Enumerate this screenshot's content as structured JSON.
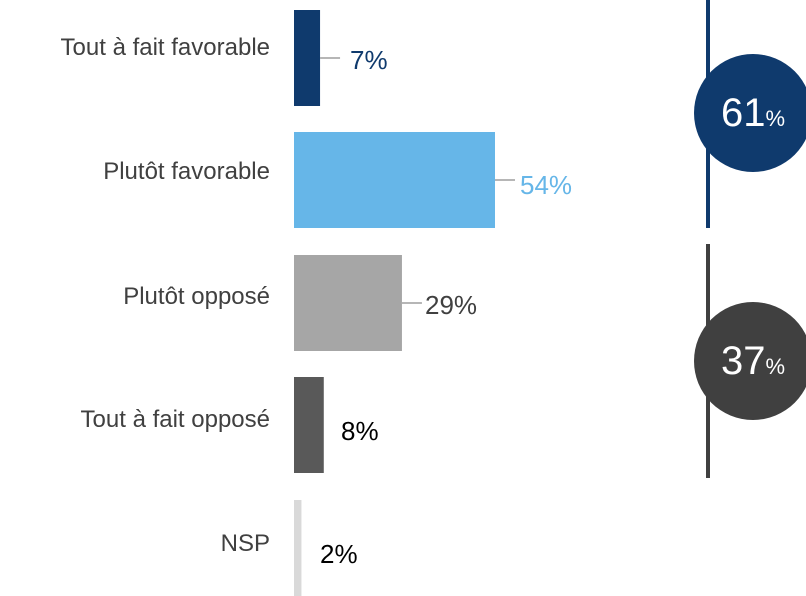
{
  "chart_data": {
    "type": "bar",
    "orientation": "horizontal",
    "categories": [
      "Tout à fait favorable",
      "Plutôt favorable",
      "Plutôt opposé",
      "Tout à fait opposé",
      "NSP"
    ],
    "values": [
      7,
      54,
      29,
      8,
      2
    ],
    "value_labels": [
      "7%",
      "54%",
      "29%",
      "8%",
      "2%"
    ],
    "colors": [
      "#0f3a6d",
      "#66b6e8",
      "#a6a6a6",
      "#595959",
      "#d9d9d9"
    ],
    "label_colors": [
      "#0f3a6d",
      "#66b6e8",
      "#404040",
      "#000000",
      "#000000"
    ],
    "xlim": [
      0,
      54
    ],
    "grid": false,
    "legend": "none",
    "groups": [
      {
        "value": "61",
        "unit": "%",
        "color": "#0f3a6d",
        "covers": [
          "Tout à fait favorable",
          "Plutôt favorable"
        ]
      },
      {
        "value": "37",
        "unit": "%",
        "color": "#404040",
        "covers": [
          "Plutôt opposé",
          "Tout à fait opposé"
        ]
      }
    ]
  }
}
